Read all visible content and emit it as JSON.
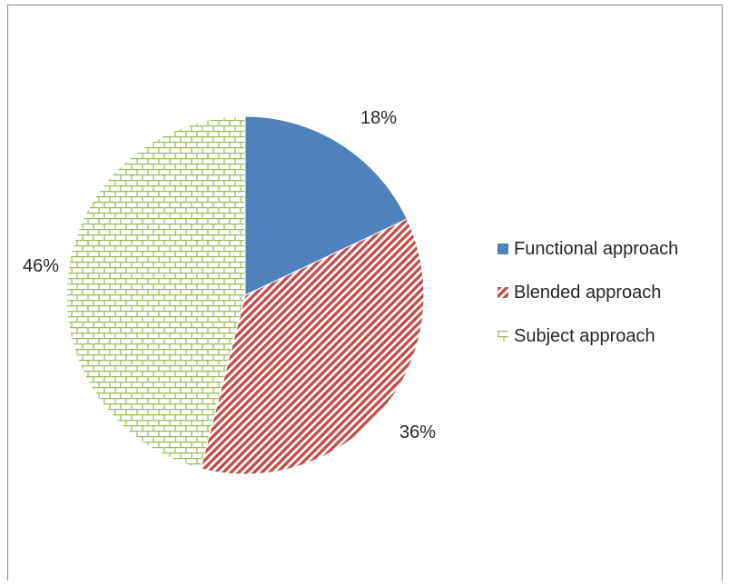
{
  "chart_data": {
    "type": "pie",
    "title": "",
    "categories": [
      "Functional approach",
      "Blended approach",
      "Subject approach"
    ],
    "values": [
      18,
      36,
      46
    ],
    "labels": [
      "18%",
      "36%",
      "46%"
    ],
    "colors": [
      "#4f81bd",
      "#c0504d",
      "#9bbb59"
    ],
    "fills": [
      "solid",
      "diagonal-stripes",
      "brick"
    ],
    "legend_position": "right",
    "start_angle": "12 o'clock, clockwise"
  }
}
